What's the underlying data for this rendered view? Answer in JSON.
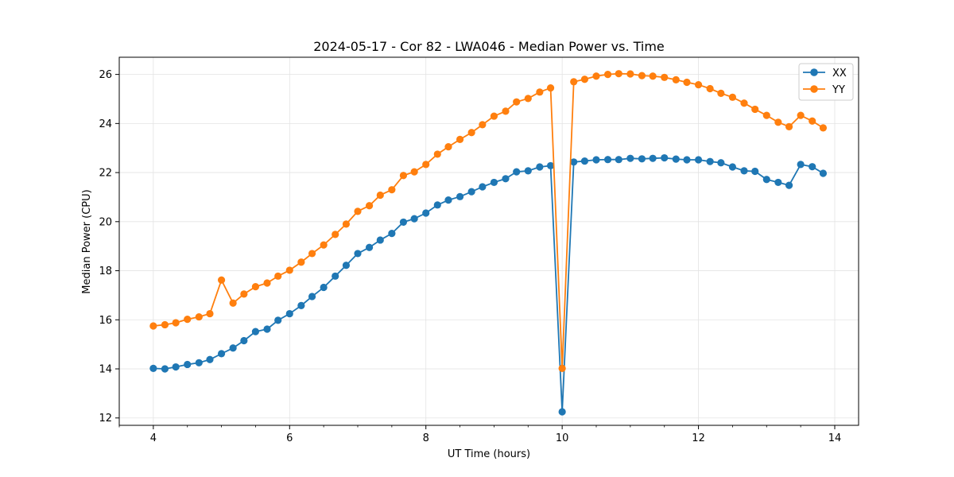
{
  "chart_data": {
    "type": "line",
    "title": "2024-05-17 - Cor 82 - LWA046 - Median Power vs. Time",
    "xlabel": "UT Time (hours)",
    "ylabel": "Median Power (CPU)",
    "xlim": [
      3.5,
      14.35
    ],
    "ylim": [
      11.7,
      26.7
    ],
    "xticks": [
      4,
      6,
      8,
      10,
      12,
      14
    ],
    "xtick_labels": [
      "4",
      "6",
      "8",
      "10",
      "12",
      "14"
    ],
    "yticks": [
      12,
      14,
      16,
      18,
      20,
      22,
      24,
      26
    ],
    "ytick_labels": [
      "12",
      "14",
      "16",
      "18",
      "20",
      "22",
      "24",
      "26"
    ],
    "grid": true,
    "legend_position": "top-right",
    "x": [
      4.0,
      4.17,
      4.33,
      4.5,
      4.67,
      4.83,
      5.0,
      5.17,
      5.33,
      5.5,
      5.67,
      5.83,
      6.0,
      6.17,
      6.33,
      6.5,
      6.67,
      6.83,
      7.0,
      7.17,
      7.33,
      7.5,
      7.67,
      7.83,
      8.0,
      8.17,
      8.33,
      8.5,
      8.67,
      8.83,
      9.0,
      9.17,
      9.33,
      9.5,
      9.67,
      9.83,
      10.0,
      10.17,
      10.33,
      10.5,
      10.67,
      10.83,
      11.0,
      11.17,
      11.33,
      11.5,
      11.67,
      11.83,
      12.0,
      12.17,
      12.33,
      12.5,
      12.67,
      12.83,
      13.0,
      13.17,
      13.33,
      13.5,
      13.67,
      13.83
    ],
    "series": [
      {
        "name": "XX",
        "color": "#1f77b4",
        "values": [
          14.02,
          14.0,
          14.08,
          14.18,
          14.25,
          14.38,
          14.62,
          14.85,
          15.15,
          15.52,
          15.62,
          15.98,
          16.25,
          16.58,
          16.95,
          17.32,
          17.78,
          18.22,
          18.7,
          18.95,
          19.25,
          19.52,
          19.98,
          20.12,
          20.35,
          20.68,
          20.88,
          21.02,
          21.22,
          21.42,
          21.6,
          21.75,
          22.03,
          22.07,
          22.23,
          22.28,
          12.25,
          22.43,
          22.47,
          22.52,
          22.53,
          22.53,
          22.58,
          22.56,
          22.58,
          22.6,
          22.55,
          22.52,
          22.52,
          22.45,
          22.4,
          22.23,
          22.07,
          22.05,
          21.72,
          21.6,
          21.48,
          22.33,
          22.24,
          21.97
        ]
      },
      {
        "name": "YY",
        "color": "#ff7f0e",
        "values": [
          15.75,
          15.8,
          15.88,
          16.02,
          16.12,
          16.25,
          17.62,
          16.68,
          17.05,
          17.35,
          17.5,
          17.78,
          18.02,
          18.35,
          18.7,
          19.05,
          19.48,
          19.9,
          20.42,
          20.65,
          21.08,
          21.3,
          21.88,
          22.03,
          22.33,
          22.75,
          23.05,
          23.35,
          23.63,
          23.95,
          24.3,
          24.5,
          24.88,
          25.02,
          25.28,
          25.45,
          14.02,
          25.7,
          25.8,
          25.93,
          26.0,
          26.03,
          26.02,
          25.95,
          25.93,
          25.88,
          25.78,
          25.68,
          25.58,
          25.42,
          25.23,
          25.07,
          24.83,
          24.58,
          24.33,
          24.05,
          23.87,
          24.33,
          24.1,
          23.82
        ]
      }
    ]
  }
}
